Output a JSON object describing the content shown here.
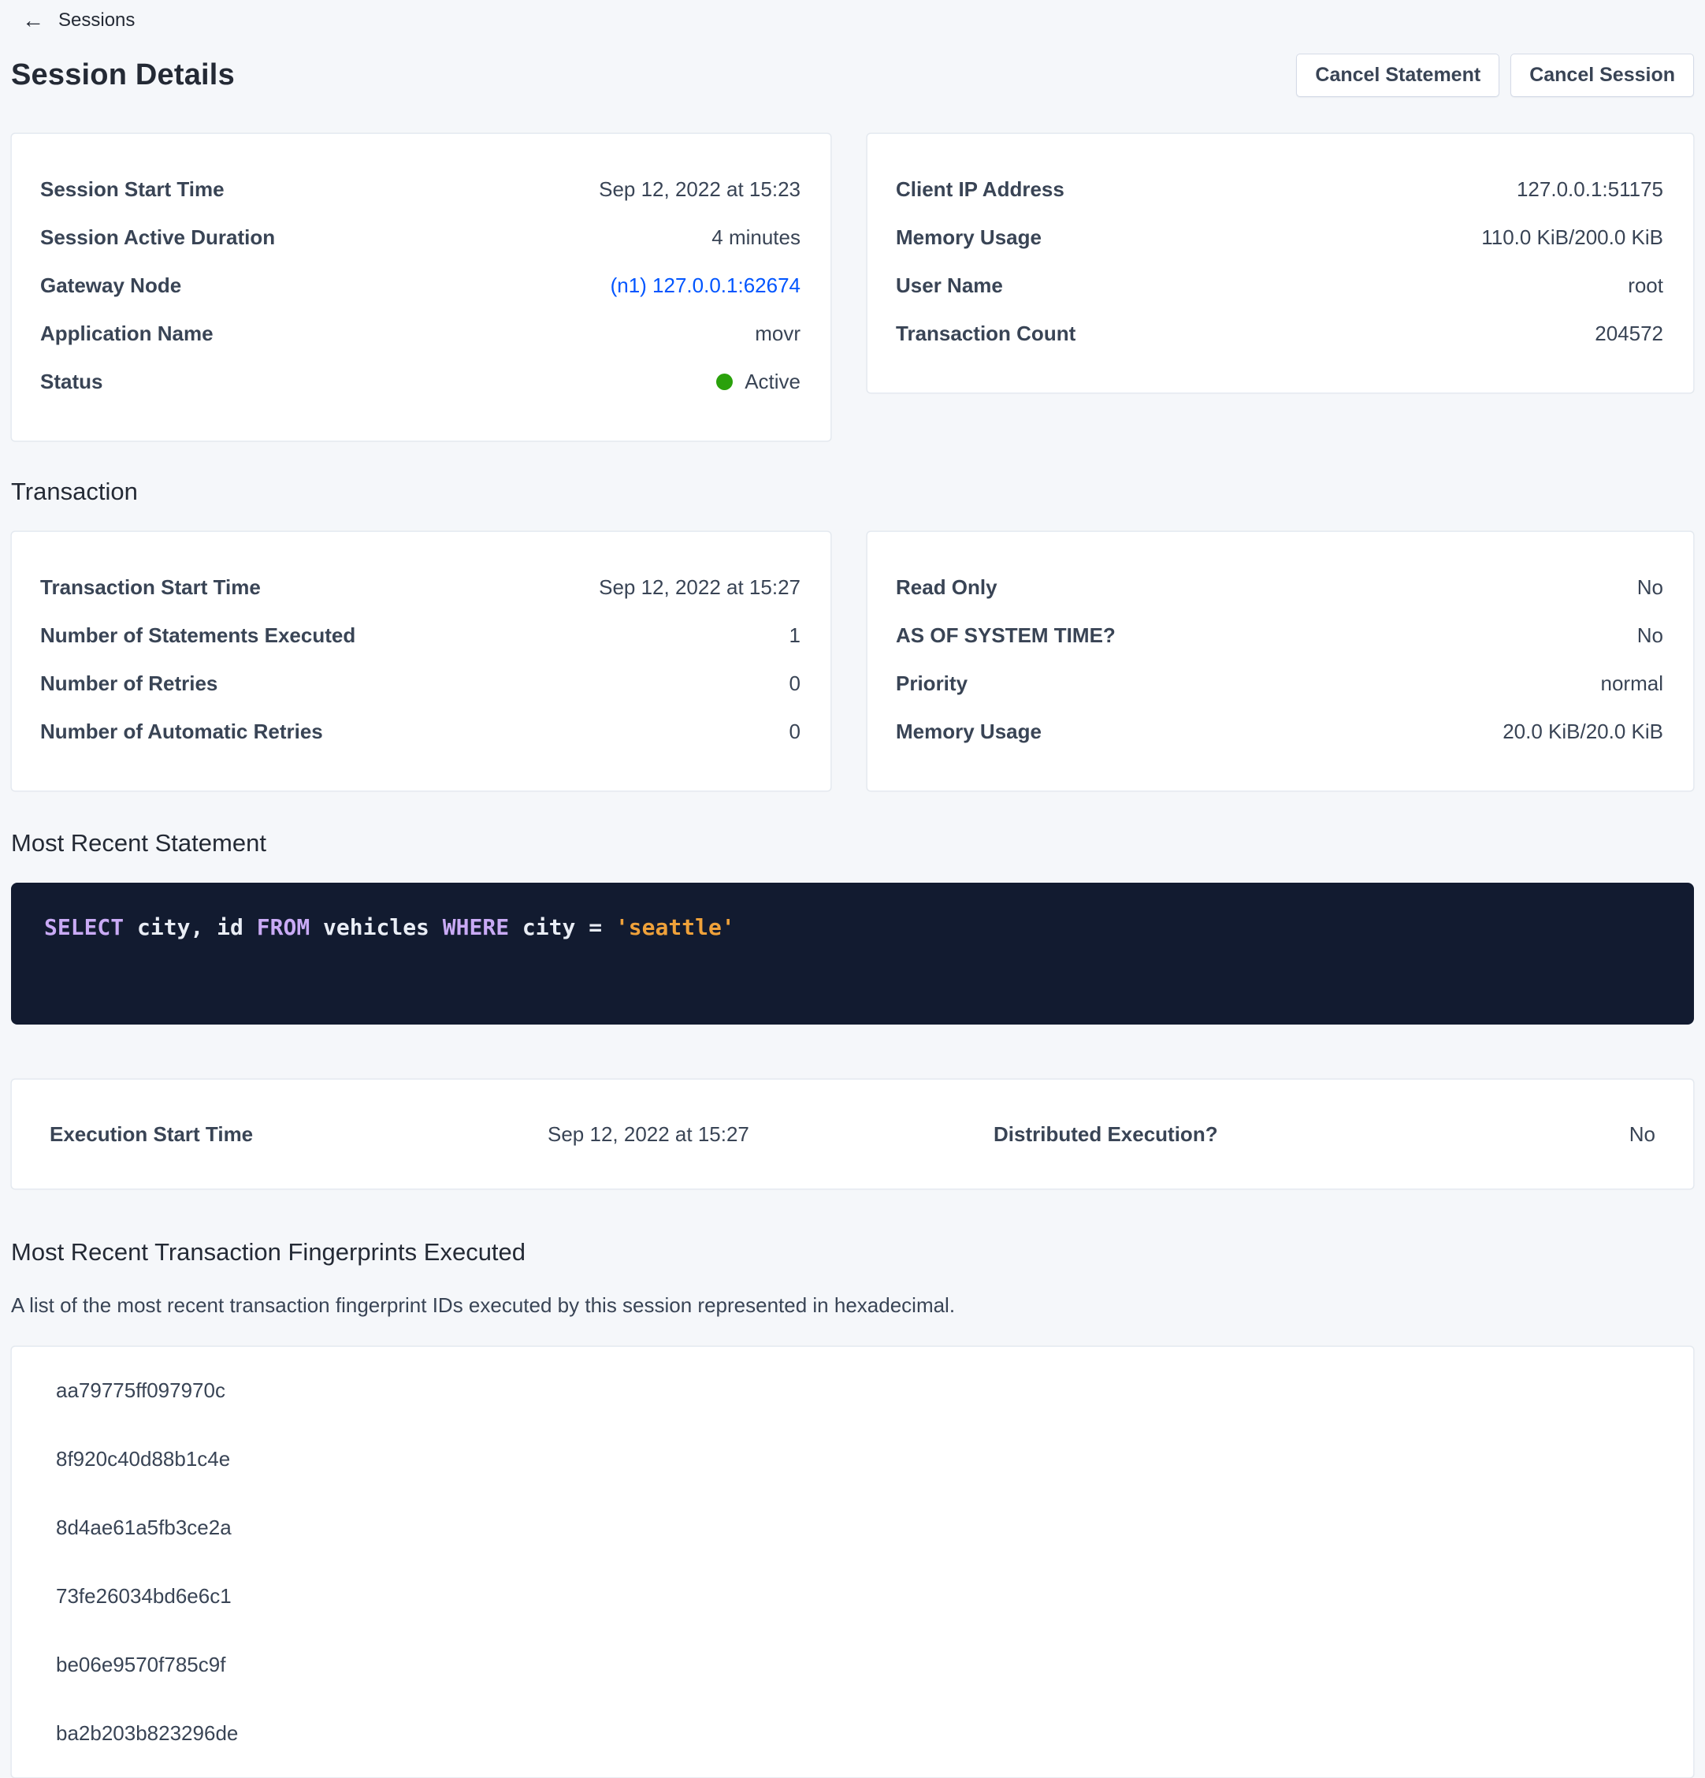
{
  "breadcrumb": {
    "label": "Sessions"
  },
  "header": {
    "title": "Session Details",
    "buttons": [
      {
        "label": "Cancel Statement"
      },
      {
        "label": "Cancel Session"
      }
    ]
  },
  "session_card_left": {
    "rows": [
      {
        "label": "Session Start Time",
        "value": "Sep 12, 2022 at 15:23"
      },
      {
        "label": "Session Active Duration",
        "value": "4 minutes"
      },
      {
        "label": "Gateway Node",
        "value": "(n1) 127.0.0.1:62674"
      },
      {
        "label": "Application Name",
        "value": "movr"
      },
      {
        "label": "Status",
        "value": "Active"
      }
    ]
  },
  "session_card_right": {
    "rows": [
      {
        "label": "Client IP Address",
        "value": "127.0.0.1:51175"
      },
      {
        "label": "Memory Usage",
        "value": "110.0 KiB/200.0 KiB"
      },
      {
        "label": "User Name",
        "value": "root"
      },
      {
        "label": "Transaction Count",
        "value": "204572"
      }
    ]
  },
  "transaction_section": {
    "heading": "Transaction",
    "card_left": {
      "rows": [
        {
          "label": "Transaction Start Time",
          "value": "Sep 12, 2022 at 15:27"
        },
        {
          "label": "Number of Statements Executed",
          "value": "1"
        },
        {
          "label": "Number of Retries",
          "value": "0"
        },
        {
          "label": "Number of Automatic Retries",
          "value": "0"
        }
      ]
    },
    "card_right": {
      "rows": [
        {
          "label": "Read Only",
          "value": "No"
        },
        {
          "label": "AS OF SYSTEM TIME?",
          "value": "No"
        },
        {
          "label": "Priority",
          "value": "normal"
        },
        {
          "label": "Memory Usage",
          "value": "20.0 KiB/20.0 KiB"
        }
      ]
    }
  },
  "statement_section": {
    "heading": "Most Recent Statement",
    "sql": {
      "full_text": "SELECT city, id FROM vehicles WHERE city = 'seattle'",
      "tokens": [
        {
          "text": "SELECT",
          "type": "keyword"
        },
        {
          "text": "city,",
          "type": "identifier"
        },
        {
          "text": "id",
          "type": "identifier"
        },
        {
          "text": "FROM",
          "type": "keyword"
        },
        {
          "text": "vehicles",
          "type": "identifier"
        },
        {
          "text": "WHERE",
          "type": "keyword"
        },
        {
          "text": "city",
          "type": "identifier"
        },
        {
          "text": "=",
          "type": "operator"
        },
        {
          "text": "'seattle'",
          "type": "string"
        }
      ]
    }
  },
  "execution_card": {
    "start": {
      "label": "Execution Start Time",
      "value": "Sep 12, 2022 at 15:27"
    },
    "distributed": {
      "label": "Distributed Execution?",
      "value": "No"
    }
  },
  "fingerprints_section": {
    "heading": "Most Recent Transaction Fingerprints Executed",
    "description": "A list of the most recent transaction fingerprint IDs executed by this session represented in hexadecimal.",
    "items": [
      "aa79775ff097970c",
      "8f920c40d88b1c4e",
      "8d4ae61a5fb3ce2a",
      "73fe26034bd6e6c1",
      "be06e9570f785c9f",
      "ba2b203b823296de"
    ]
  },
  "colors": {
    "page_background": "#f5f7fa",
    "link_blue": "#0055ff",
    "status_active_green": "#2aa10b",
    "code_background": "#121b30",
    "code_keyword": "#c9aaf5",
    "code_string": "#efa13a",
    "code_text": "#e9edf5"
  }
}
